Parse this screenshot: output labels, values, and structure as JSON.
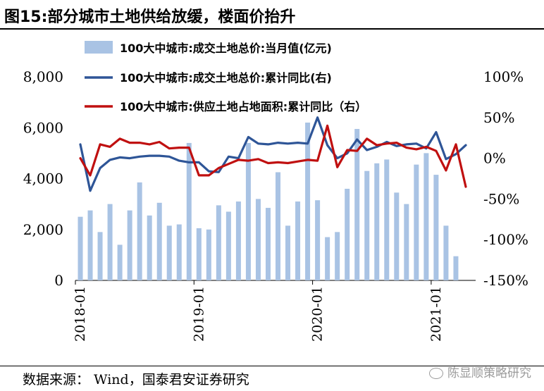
{
  "title": "图15:部分城市土地供给放缓，楼面价抬升",
  "source": "数据来源： Wind，国泰君安证券研究",
  "watermark": "陈显顺策略研究",
  "colors": {
    "bar": "#a9c3e4",
    "line1": "#2e5597",
    "line2": "#c01010"
  },
  "chart_data": {
    "type": "bar+line",
    "x": [
      "2018-01",
      "2018-02",
      "2018-03",
      "2018-04",
      "2018-05",
      "2018-06",
      "2018-07",
      "2018-08",
      "2018-09",
      "2018-10",
      "2018-11",
      "2018-12",
      "2019-01",
      "2019-02",
      "2019-03",
      "2019-04",
      "2019-05",
      "2019-06",
      "2019-07",
      "2019-08",
      "2019-09",
      "2019-10",
      "2019-11",
      "2019-12",
      "2020-01",
      "2020-02",
      "2020-03",
      "2020-04",
      "2020-05",
      "2020-06",
      "2020-07",
      "2020-08",
      "2020-09",
      "2020-10",
      "2020-11",
      "2020-12",
      "2021-01",
      "2021-02",
      "2021-03",
      "2021-04"
    ],
    "x_tick_labels": [
      "2018-01",
      "2019-01",
      "2020-01",
      "2021-01"
    ],
    "left_axis": {
      "ylim": [
        0,
        8000
      ],
      "ticks": [
        "0",
        "2,000",
        "4,000",
        "6,000",
        "8,000"
      ]
    },
    "right_axis": {
      "ylim": [
        -150,
        100
      ],
      "ticks": [
        "-150%",
        "-100%",
        "-50%",
        "0%",
        "50%",
        "100%"
      ]
    },
    "series": [
      {
        "name": "100大中城市:成交土地总价:当月值(亿元)",
        "type": "bar",
        "axis": "left",
        "values": [
          2500,
          2750,
          1900,
          3000,
          1400,
          2750,
          3850,
          2550,
          3050,
          2150,
          2200,
          5400,
          2050,
          2000,
          2950,
          2700,
          3100,
          5400,
          3200,
          2850,
          4250,
          2150,
          3100,
          6200,
          3150,
          1700,
          1900,
          3600,
          5950,
          4300,
          4600,
          4750,
          3450,
          3000,
          4550,
          5000,
          4150,
          2150,
          950,
          null
        ]
      },
      {
        "name": "100大中城市:成交土地总价:累计同比(右)",
        "type": "line",
        "axis": "right",
        "values": [
          17,
          -40,
          -12,
          -2,
          1,
          0,
          2,
          3,
          3,
          2,
          -3,
          -5,
          -5,
          -16,
          -17,
          2,
          0,
          26,
          18,
          17,
          19,
          18,
          19,
          18,
          50,
          16,
          0,
          6,
          23,
          10,
          14,
          20,
          15,
          17,
          18,
          12,
          32,
          -1,
          5,
          16
        ]
      },
      {
        "name": "100大中城市:供应土地占地面积:累计同比（右）",
        "type": "line",
        "axis": "right",
        "values": [
          0,
          -21,
          17,
          14,
          24,
          19,
          19,
          17,
          20,
          12,
          13,
          13,
          -21,
          -21,
          -12,
          -7,
          -2,
          -3,
          -1,
          -6,
          -5,
          -6,
          -4,
          -2,
          -3,
          40,
          -11,
          10,
          9,
          24,
          16,
          18,
          19,
          13,
          11,
          14,
          9,
          -15,
          17,
          -35
        ]
      }
    ]
  }
}
